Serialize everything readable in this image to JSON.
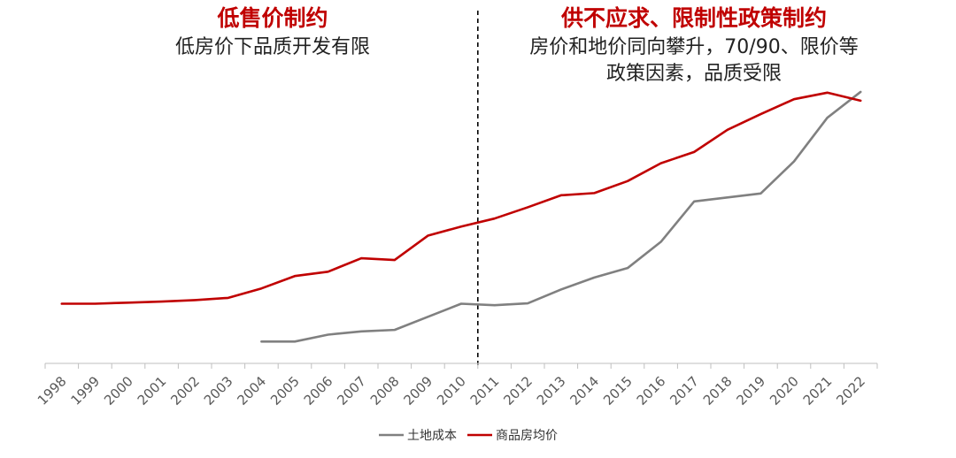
{
  "annotations": {
    "left_title": "低售价制约",
    "left_text": "低房价下品质开发有限",
    "right_title": "供不应求、限制性政策制约",
    "right_text_line1": "房价和地价同向攀升，70/90、限价等",
    "right_text_line2": "政策因素，品质受限"
  },
  "chart_data": {
    "type": "line",
    "categories": [
      "1998",
      "1999",
      "2000",
      "2001",
      "2002",
      "2003",
      "2004",
      "2005",
      "2006",
      "2007",
      "2008",
      "2009",
      "2010",
      "2011",
      "2012",
      "2013",
      "2014",
      "2015",
      "2016",
      "2017",
      "2018",
      "2019",
      "2020",
      "2021",
      "2022"
    ],
    "series": [
      {
        "name": "土地成本",
        "color": "#808080",
        "values": [
          null,
          null,
          null,
          null,
          null,
          null,
          6,
          6,
          7.9,
          8.8,
          9.2,
          12.8,
          16.4,
          16.0,
          16.5,
          20.3,
          23.6,
          26.2,
          33.4,
          44.5,
          45.6,
          46.7,
          55.5,
          67.5,
          74.6
        ]
      },
      {
        "name": "商品房均价",
        "color": "#c00000",
        "values": [
          16.4,
          16.4,
          16.7,
          17.0,
          17.4,
          18.0,
          20.6,
          24.0,
          25.2,
          28.9,
          28.4,
          35.1,
          37.6,
          39.8,
          42.9,
          46.2,
          46.8,
          50.1,
          55.0,
          58.1,
          64.2,
          68.5,
          72.6,
          74.4,
          72.2
        ]
      }
    ],
    "ylim": [
      0,
      95
    ],
    "divider_after": "2010",
    "legend_position": "bottom-center",
    "grid": false
  }
}
